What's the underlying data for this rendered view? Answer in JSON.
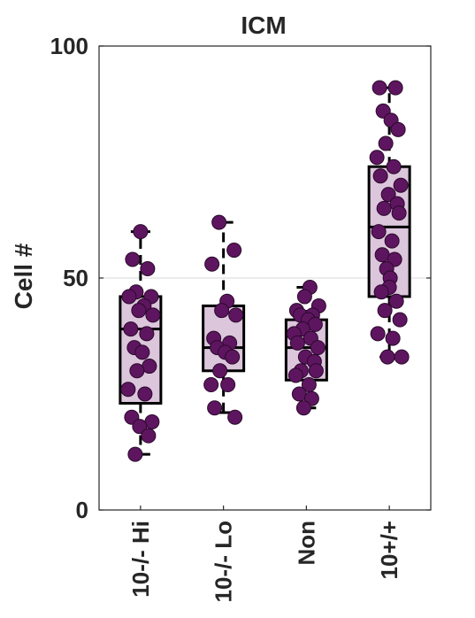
{
  "chart_data": {
    "type": "box",
    "title": "ICM",
    "ylabel": "Cell #",
    "xlabel": "",
    "ylim": [
      0,
      100
    ],
    "yticks": [
      0,
      50,
      100
    ],
    "gridlines": [
      50
    ],
    "colors": {
      "box_fill": "#dcc6dc",
      "point_fill": "#5e1560",
      "point_edge": "#2a0a2b",
      "line": "#000000",
      "grid": "#d9d9d9"
    },
    "categories": [
      "10-/- Hi",
      "10-/- Lo",
      "Non",
      "10+/+"
    ],
    "boxes": [
      {
        "q1": 23,
        "median": 39,
        "q3": 46,
        "whisker_low": 12,
        "whisker_high": 60
      },
      {
        "q1": 30,
        "median": 35,
        "q3": 44,
        "whisker_low": 21,
        "whisker_high": 62
      },
      {
        "q1": 28,
        "median": 35,
        "q3": 41,
        "whisker_low": 22,
        "whisker_high": 48
      },
      {
        "q1": 46,
        "median": 61,
        "q3": 74,
        "whisker_low": 33,
        "whisker_high": 91
      }
    ],
    "points": [
      [
        60,
        54,
        52,
        47,
        46,
        46,
        44,
        43,
        42,
        39,
        38,
        35,
        34,
        31,
        30,
        26,
        25,
        20,
        19,
        18,
        16,
        12
      ],
      [
        62,
        56,
        53,
        45,
        43,
        42,
        37,
        36,
        35,
        34,
        33,
        30,
        27,
        27,
        22,
        20
      ],
      [
        48,
        46,
        44,
        43,
        42,
        42,
        41,
        40,
        39,
        38,
        37,
        36,
        35,
        33,
        32,
        30,
        30,
        29,
        27,
        25,
        24,
        22
      ],
      [
        91,
        91,
        86,
        84,
        82,
        79,
        76,
        74,
        72,
        70,
        68,
        66,
        65,
        64,
        60,
        58,
        55,
        54,
        52,
        50,
        48,
        47,
        45,
        43,
        41,
        38,
        37,
        33,
        33
      ]
    ]
  }
}
